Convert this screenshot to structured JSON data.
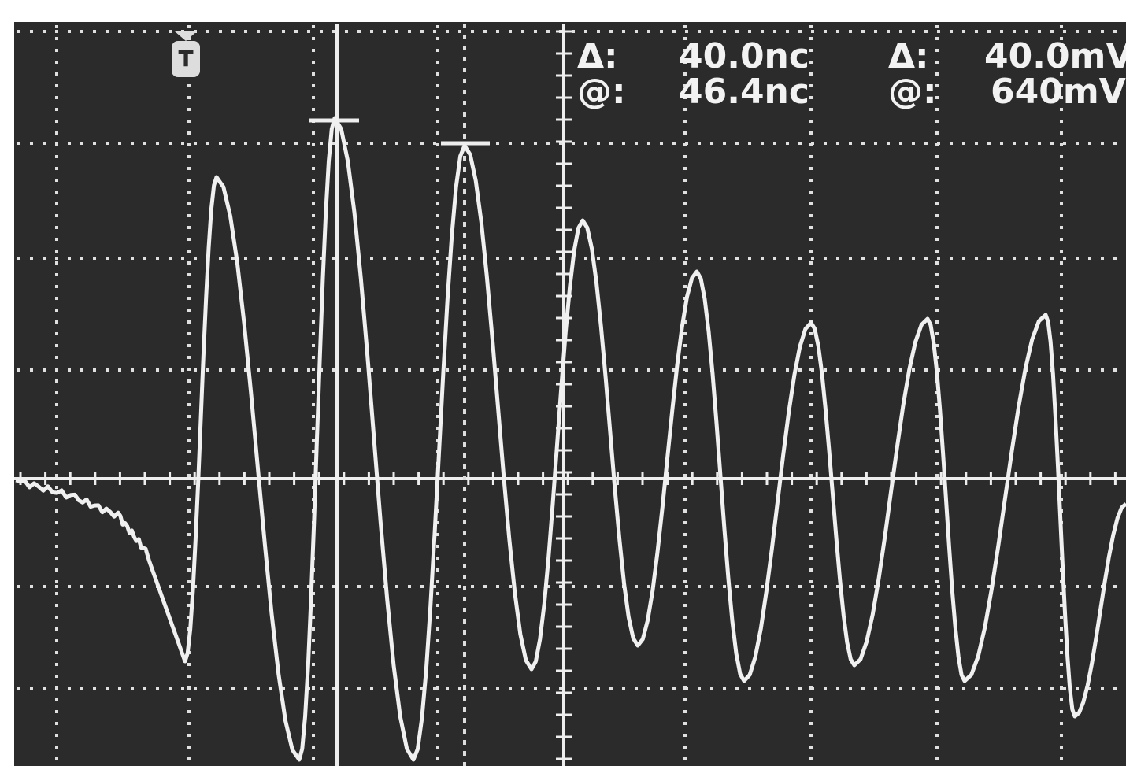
{
  "readout": {
    "cursor1": {
      "delta_label": "Δ:",
      "delta_value": "40.0nc",
      "at_label": "@:",
      "at_value": "46.4nc"
    },
    "cursor2": {
      "delta_label": "Δ:",
      "delta_value": "40.0mV",
      "at_label": "@:",
      "at_value": "640mV"
    }
  },
  "trigger_marker": "T"
}
